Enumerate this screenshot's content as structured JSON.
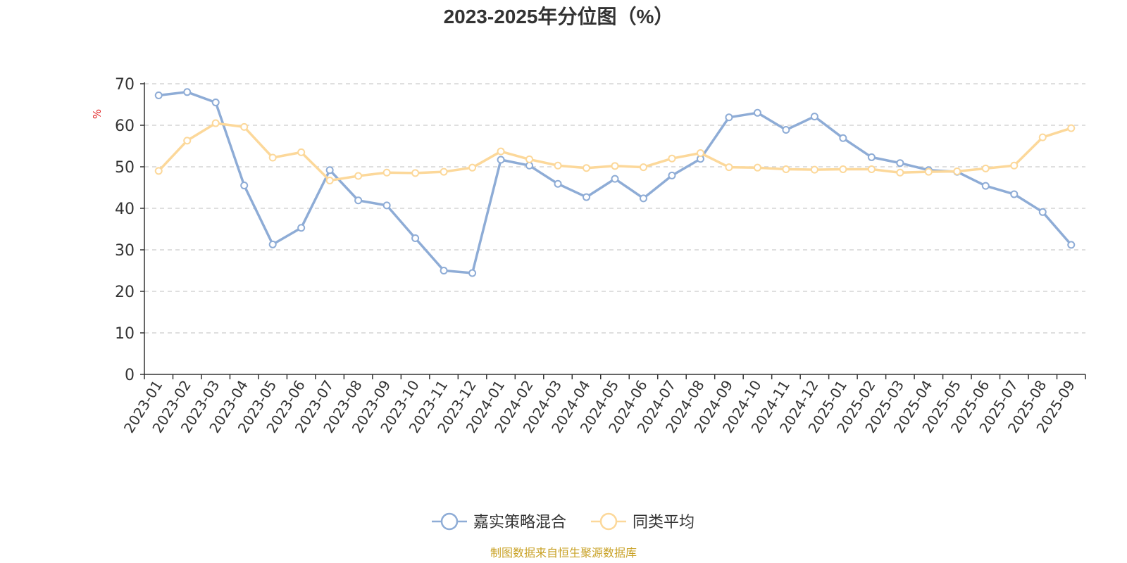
{
  "chart_data": {
    "type": "line",
    "title": "2023-2025年分位图（%）",
    "ylabel": "%",
    "ylim": [
      0,
      70
    ],
    "yticks": [
      0,
      10,
      20,
      30,
      40,
      50,
      60,
      70
    ],
    "grid": true,
    "legend_position": "bottom-center",
    "categories": [
      "2023-01",
      "2023-02",
      "2023-03",
      "2023-04",
      "2023-05",
      "2023-06",
      "2023-07",
      "2023-08",
      "2023-09",
      "2023-10",
      "2023-11",
      "2023-12",
      "2024-01",
      "2024-02",
      "2024-03",
      "2024-04",
      "2024-05",
      "2024-06",
      "2024-07",
      "2024-08",
      "2024-09",
      "2024-10",
      "2024-11",
      "2024-12",
      "2025-01",
      "2025-02",
      "2025-03",
      "2025-04",
      "2025-05",
      "2025-06",
      "2025-07",
      "2025-08",
      "2025-09"
    ],
    "series": [
      {
        "name": "嘉实策略混合",
        "color": "#8eacd6",
        "values": [
          67.2,
          68.0,
          65.5,
          45.5,
          31.3,
          35.3,
          49.2,
          41.9,
          40.7,
          32.8,
          25.0,
          24.4,
          51.7,
          50.3,
          45.9,
          42.7,
          47.1,
          42.4,
          47.9,
          51.9,
          61.9,
          63.0,
          58.9,
          62.1,
          56.9,
          52.3,
          50.9,
          49.2,
          48.8,
          45.4,
          43.4,
          39.1,
          31.2
        ]
      },
      {
        "name": "同类平均",
        "color": "#fcd89a",
        "values": [
          49.0,
          56.3,
          60.5,
          59.6,
          52.2,
          53.5,
          46.7,
          47.8,
          48.6,
          48.5,
          48.8,
          49.8,
          53.7,
          51.8,
          50.3,
          49.7,
          50.2,
          49.9,
          52.0,
          53.3,
          49.9,
          49.8,
          49.4,
          49.3,
          49.4,
          49.4,
          48.6,
          48.8,
          48.9,
          49.6,
          50.3,
          57.1,
          59.3
        ]
      }
    ]
  },
  "source_note": "制图数据来自恒生聚源数据库",
  "colors": {
    "axis": "#333333",
    "grid": "#cccccc",
    "title": "#333333",
    "tick_label": "#333333",
    "ylabel": "#e02020",
    "source_note": "#c9a227"
  }
}
